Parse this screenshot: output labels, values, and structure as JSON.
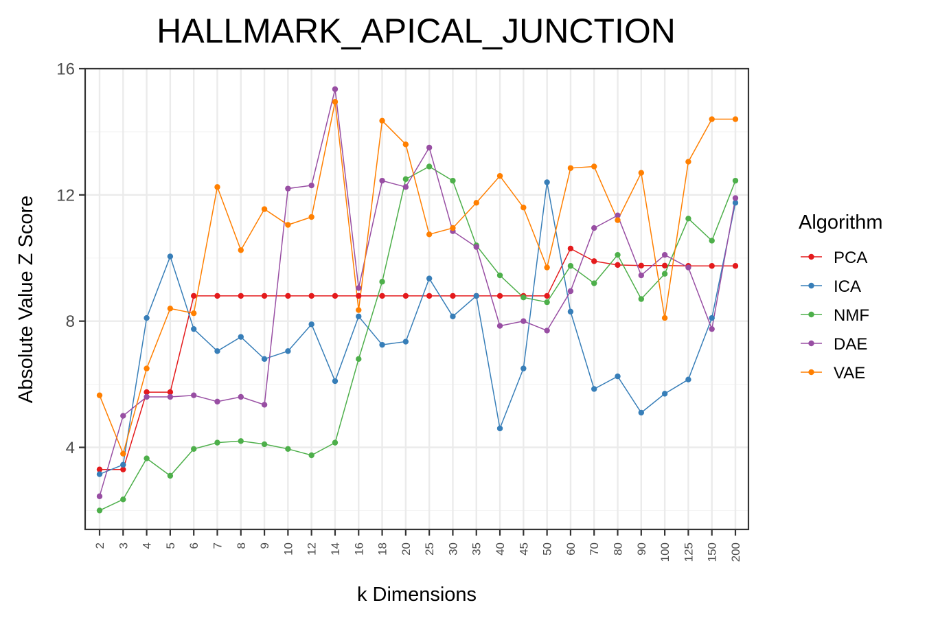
{
  "chart_data": {
    "type": "line",
    "title": "HALLMARK_APICAL_JUNCTION",
    "xlabel": "k Dimensions",
    "ylabel": "Absolute Value Z Score",
    "categories": [
      "2",
      "3",
      "4",
      "5",
      "6",
      "7",
      "8",
      "9",
      "10",
      "12",
      "14",
      "16",
      "18",
      "20",
      "25",
      "30",
      "35",
      "40",
      "45",
      "50",
      "60",
      "70",
      "80",
      "90",
      "100",
      "125",
      "150",
      "200"
    ],
    "ylim": [
      1.4,
      16
    ],
    "yticks": [
      4,
      8,
      12,
      16
    ],
    "grid": true,
    "legend": {
      "title": "Algorithm",
      "position": "right"
    },
    "series": [
      {
        "name": "PCA",
        "color": "#E41A1C",
        "values": [
          3.3,
          3.3,
          5.75,
          5.75,
          8.8,
          8.8,
          8.8,
          8.8,
          8.8,
          8.8,
          8.8,
          8.8,
          8.8,
          8.8,
          8.8,
          8.8,
          8.8,
          8.8,
          8.8,
          8.8,
          10.3,
          9.9,
          9.78,
          9.76,
          9.76,
          9.75,
          9.75,
          9.75
        ]
      },
      {
        "name": "ICA",
        "color": "#377EB8",
        "values": [
          3.15,
          3.45,
          8.1,
          10.05,
          7.75,
          7.05,
          7.5,
          6.8,
          7.05,
          7.9,
          6.1,
          8.15,
          7.25,
          7.35,
          9.35,
          8.15,
          8.8,
          4.6,
          6.5,
          12.4,
          8.3,
          5.85,
          6.25,
          5.1,
          5.7,
          6.15,
          8.1,
          11.75
        ]
      },
      {
        "name": "NMF",
        "color": "#4DAF4A",
        "values": [
          2.0,
          2.35,
          3.65,
          3.1,
          3.95,
          4.15,
          4.2,
          4.1,
          3.95,
          3.75,
          4.15,
          6.8,
          9.25,
          12.5,
          12.9,
          12.45,
          10.4,
          9.45,
          8.75,
          8.6,
          9.75,
          9.2,
          10.1,
          8.7,
          9.5,
          11.25,
          10.55,
          12.45
        ]
      },
      {
        "name": "DAE",
        "color": "#984EA3",
        "values": [
          2.45,
          5.0,
          5.6,
          5.6,
          5.65,
          5.45,
          5.6,
          5.35,
          12.2,
          12.3,
          15.35,
          9.05,
          12.45,
          12.25,
          13.5,
          10.85,
          10.35,
          7.85,
          8.0,
          7.7,
          8.95,
          10.95,
          11.35,
          9.45,
          10.1,
          9.7,
          7.75,
          11.9
        ]
      },
      {
        "name": "VAE",
        "color": "#FF7F00",
        "values": [
          5.65,
          3.8,
          6.5,
          8.4,
          8.25,
          12.25,
          10.25,
          11.55,
          11.05,
          11.3,
          14.95,
          8.35,
          14.35,
          13.6,
          10.75,
          10.95,
          11.75,
          12.6,
          11.6,
          9.7,
          12.85,
          12.9,
          11.2,
          12.7,
          8.1,
          13.05,
          14.4,
          14.4
        ]
      }
    ]
  }
}
